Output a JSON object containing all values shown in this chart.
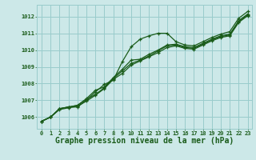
{
  "title": "Graphe pression niveau de la mer (hPa)",
  "title_fontsize": 7.0,
  "background_color": "#cce8e8",
  "grid_color": "#99cccc",
  "line_color": "#1a5c1a",
  "xlim": [
    -0.5,
    23.5
  ],
  "ylim": [
    1005.3,
    1012.7
  ],
  "xticks": [
    0,
    1,
    2,
    3,
    4,
    5,
    6,
    7,
    8,
    9,
    10,
    11,
    12,
    13,
    14,
    15,
    16,
    17,
    18,
    19,
    20,
    21,
    22,
    23
  ],
  "yticks": [
    1006,
    1007,
    1008,
    1009,
    1010,
    1011,
    1012
  ],
  "series": [
    [
      1005.75,
      1006.0,
      1006.5,
      1006.6,
      1006.6,
      1007.0,
      1007.5,
      1007.95,
      1008.2,
      1009.3,
      1010.2,
      1010.65,
      1010.85,
      1011.0,
      1011.0,
      1010.5,
      1010.3,
      1010.25,
      1010.5,
      1010.75,
      1010.95,
      1011.1,
      1011.9,
      1012.3
    ],
    [
      1005.75,
      1006.0,
      1006.5,
      1006.6,
      1006.7,
      1007.1,
      1007.6,
      1007.8,
      1008.35,
      1008.85,
      1009.4,
      1009.45,
      1009.75,
      1010.0,
      1010.3,
      1010.35,
      1010.2,
      1010.15,
      1010.4,
      1010.65,
      1010.85,
      1010.95,
      1011.75,
      1012.15
    ],
    [
      1005.75,
      1006.0,
      1006.5,
      1006.6,
      1006.7,
      1007.05,
      1007.35,
      1007.75,
      1008.3,
      1008.75,
      1009.2,
      1009.4,
      1009.65,
      1009.95,
      1010.25,
      1010.3,
      1010.15,
      1010.1,
      1010.35,
      1010.6,
      1010.8,
      1010.9,
      1011.7,
      1012.1
    ],
    [
      1005.75,
      1006.0,
      1006.45,
      1006.55,
      1006.65,
      1006.95,
      1007.3,
      1007.7,
      1008.25,
      1008.6,
      1009.1,
      1009.35,
      1009.6,
      1009.85,
      1010.15,
      1010.25,
      1010.1,
      1010.05,
      1010.3,
      1010.55,
      1010.75,
      1010.85,
      1011.65,
      1012.05
    ]
  ]
}
